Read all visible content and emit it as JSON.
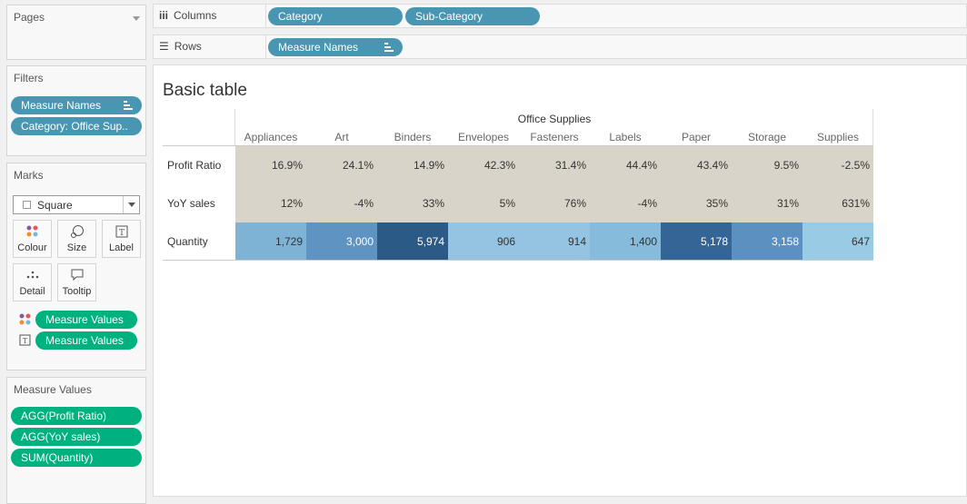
{
  "left_panel": {
    "pages": {
      "title": "Pages"
    },
    "filters": {
      "title": "Filters",
      "items": [
        "Measure Names",
        "Category: Office Sup.."
      ]
    },
    "marks": {
      "title": "Marks",
      "mark_type": "Square",
      "buttons": [
        "Colour",
        "Size",
        "Label",
        "Detail",
        "Tooltip"
      ],
      "pills": [
        {
          "icon": "colour-icon",
          "label": "Measure Values"
        },
        {
          "icon": "label-icon",
          "label": "Measure Values"
        }
      ]
    },
    "measure_values": {
      "title": "Measure Values",
      "items": [
        "AGG(Profit Ratio)",
        "AGG(YoY sales)",
        "SUM(Quantity)"
      ]
    }
  },
  "shelves": {
    "columns": {
      "label": "Columns",
      "pills": [
        "Category",
        "Sub-Category"
      ]
    },
    "rows": {
      "label": "Rows",
      "pills": [
        "Measure Names"
      ]
    }
  },
  "view": {
    "title": "Basic table",
    "category": "Office Supplies",
    "subcategories": [
      "Appliances",
      "Art",
      "Binders",
      "Envelopes",
      "Fasteners",
      "Labels",
      "Paper",
      "Storage",
      "Supplies"
    ],
    "rows": [
      {
        "label": "Profit Ratio",
        "values": [
          "16.9%",
          "24.1%",
          "14.9%",
          "42.3%",
          "31.4%",
          "44.4%",
          "43.4%",
          "9.5%",
          "-2.5%"
        ]
      },
      {
        "label": "YoY sales",
        "values": [
          "12%",
          "-4%",
          "33%",
          "5%",
          "76%",
          "-4%",
          "35%",
          "31%",
          "631%"
        ]
      },
      {
        "label": "Quantity",
        "values": [
          "1,729",
          "3,000",
          "5,974",
          "906",
          "914",
          "1,400",
          "5,178",
          "3,158",
          "647"
        ],
        "colors": [
          "#7fb3d6",
          "#5f94c2",
          "#2c5a87",
          "#94c4e1",
          "#94c4e1",
          "#86bbdb",
          "#356497",
          "#5b90c0",
          "#9acbe5"
        ]
      }
    ],
    "beige": "#d9d4c9"
  }
}
